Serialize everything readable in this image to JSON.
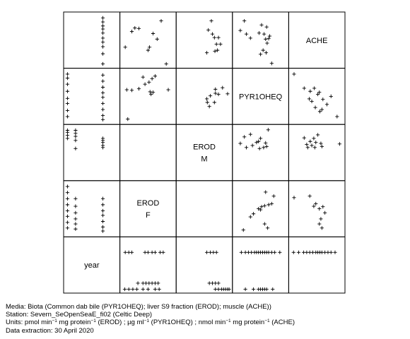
{
  "chart_data": {
    "type": "scatter",
    "title": "",
    "variables": [
      {
        "id": "year",
        "label_lines": [
          "year"
        ]
      },
      {
        "id": "erod_f",
        "label_lines": [
          "EROD",
          "F"
        ]
      },
      {
        "id": "erod_m",
        "label_lines": [
          "EROD",
          "M"
        ]
      },
      {
        "id": "pyr1oheq",
        "label_lines": [
          "PYR1OHEQ"
        ]
      },
      {
        "id": "ache",
        "label_lines": [
          "ACHE"
        ]
      }
    ],
    "panels": [
      {
        "row": 0,
        "col": 1,
        "points": [
          [
            0.05,
            0.64
          ],
          [
            0.18,
            0.33
          ],
          [
            0.24,
            0.26
          ],
          [
            0.32,
            0.27
          ],
          [
            0.5,
            0.7
          ],
          [
            0.53,
            0.64
          ],
          [
            0.6,
            0.37
          ],
          [
            0.76,
            0.12
          ],
          [
            0.68,
            0.48
          ],
          [
            0.86,
            0.97
          ]
        ]
      },
      {
        "row": 0,
        "col": 2,
        "points": [
          [
            0.58,
            0.3
          ],
          [
            0.64,
            0.12
          ],
          [
            0.66,
            0.38
          ],
          [
            0.7,
            0.45
          ],
          [
            0.74,
            0.58
          ],
          [
            0.78,
            0.45
          ],
          [
            0.82,
            0.58
          ],
          [
            0.71,
            0.72
          ],
          [
            0.76,
            0.7
          ],
          [
            0.55,
            0.75
          ]
        ]
      },
      {
        "row": 0,
        "col": 3,
        "points": [
          [
            0.1,
            0.31
          ],
          [
            0.22,
            0.38
          ],
          [
            0.18,
            0.12
          ],
          [
            0.3,
            0.46
          ],
          [
            0.47,
            0.36
          ],
          [
            0.52,
            0.2
          ],
          [
            0.57,
            0.38
          ],
          [
            0.6,
            0.48
          ],
          [
            0.62,
            0.24
          ],
          [
            0.66,
            0.47
          ],
          [
            0.68,
            0.42
          ],
          [
            0.63,
            0.56
          ],
          [
            0.55,
            0.7
          ],
          [
            0.5,
            0.78
          ],
          [
            0.61,
            0.75
          ],
          [
            0.72,
            0.96
          ]
        ]
      },
      {
        "row": 0,
        "col": 0,
        "points": [
          [
            0.72,
            0.06
          ],
          [
            0.72,
            0.14
          ],
          [
            0.72,
            0.22
          ],
          [
            0.72,
            0.28
          ],
          [
            0.72,
            0.36
          ],
          [
            0.72,
            0.46
          ],
          [
            0.72,
            0.54
          ],
          [
            0.72,
            0.63
          ],
          [
            0.72,
            0.77
          ],
          [
            0.72,
            0.97
          ]
        ]
      },
      {
        "row": 1,
        "col": 0,
        "points": [
          [
            0.02,
            0.06
          ],
          [
            0.02,
            0.14
          ],
          [
            0.02,
            0.26
          ],
          [
            0.02,
            0.4
          ],
          [
            0.02,
            0.54
          ],
          [
            0.02,
            0.64
          ],
          [
            0.02,
            0.78
          ],
          [
            0.02,
            0.9
          ],
          [
            0.72,
            0.08
          ],
          [
            0.72,
            0.2
          ],
          [
            0.72,
            0.32
          ],
          [
            0.72,
            0.43
          ],
          [
            0.72,
            0.52
          ],
          [
            0.72,
            0.64
          ],
          [
            0.72,
            0.76
          ],
          [
            0.72,
            0.88
          ],
          [
            0.72,
            0.96
          ]
        ]
      },
      {
        "row": 1,
        "col": 1,
        "points": [
          [
            0.1,
            0.95
          ],
          [
            0.08,
            0.37
          ],
          [
            0.18,
            0.38
          ],
          [
            0.32,
            0.35
          ],
          [
            0.4,
            0.12
          ],
          [
            0.52,
            0.22
          ],
          [
            0.58,
            0.15
          ],
          [
            0.56,
            0.46
          ],
          [
            0.6,
            0.42
          ],
          [
            0.54,
            0.41
          ],
          [
            0.64,
            0.1
          ],
          [
            0.44,
            0.26
          ],
          [
            0.9,
            0.37
          ]
        ]
      },
      {
        "row": 1,
        "col": 2,
        "points": [
          [
            0.55,
            0.55
          ],
          [
            0.62,
            0.49
          ],
          [
            0.7,
            0.62
          ],
          [
            0.72,
            0.44
          ],
          [
            0.78,
            0.46
          ],
          [
            0.72,
            0.36
          ],
          [
            0.6,
            0.7
          ],
          [
            0.56,
            0.62
          ],
          [
            0.96,
            0.45
          ],
          [
            0.86,
            0.33
          ]
        ]
      },
      {
        "row": 1,
        "col": 4,
        "points": [
          [
            0.05,
            0.06
          ],
          [
            0.25,
            0.34
          ],
          [
            0.37,
            0.4
          ],
          [
            0.45,
            0.34
          ],
          [
            0.52,
            0.46
          ],
          [
            0.35,
            0.55
          ],
          [
            0.4,
            0.6
          ],
          [
            0.47,
            0.72
          ],
          [
            0.56,
            0.8
          ],
          [
            0.6,
            0.76
          ],
          [
            0.7,
            0.66
          ],
          [
            0.78,
            0.5
          ],
          [
            0.62,
            0.56
          ],
          [
            0.9,
            0.9
          ],
          [
            0.55,
            0.42
          ]
        ]
      },
      {
        "row": 2,
        "col": 0,
        "points": [
          [
            0.02,
            0.06
          ],
          [
            0.02,
            0.1
          ],
          [
            0.02,
            0.16
          ],
          [
            0.02,
            0.22
          ],
          [
            0.18,
            0.06
          ],
          [
            0.18,
            0.12
          ],
          [
            0.18,
            0.18
          ],
          [
            0.18,
            0.26
          ],
          [
            0.18,
            0.42
          ],
          [
            0.72,
            0.22
          ],
          [
            0.72,
            0.26
          ],
          [
            0.72,
            0.3
          ],
          [
            0.72,
            0.36
          ],
          [
            0.72,
            0.4
          ]
        ]
      },
      {
        "row": 2,
        "col": 3,
        "points": [
          [
            0.18,
            0.19
          ],
          [
            0.3,
            0.14
          ],
          [
            0.1,
            0.32
          ],
          [
            0.22,
            0.4
          ],
          [
            0.34,
            0.36
          ],
          [
            0.46,
            0.28
          ],
          [
            0.5,
            0.22
          ],
          [
            0.42,
            0.3
          ],
          [
            0.6,
            0.31
          ],
          [
            0.65,
            0.05
          ],
          [
            0.62,
            0.38
          ],
          [
            0.56,
            0.4
          ],
          [
            0.48,
            0.42
          ]
        ]
      },
      {
        "row": 2,
        "col": 4,
        "points": [
          [
            0.25,
            0.21
          ],
          [
            0.3,
            0.34
          ],
          [
            0.37,
            0.28
          ],
          [
            0.44,
            0.22
          ],
          [
            0.48,
            0.3
          ],
          [
            0.52,
            0.15
          ],
          [
            0.58,
            0.32
          ],
          [
            0.6,
            0.38
          ],
          [
            0.46,
            0.4
          ],
          [
            0.4,
            0.36
          ],
          [
            0.95,
            0.33
          ],
          [
            0.32,
            0.4
          ]
        ]
      },
      {
        "row": 3,
        "col": 0,
        "points": [
          [
            0.02,
            0.06
          ],
          [
            0.02,
            0.18
          ],
          [
            0.02,
            0.3
          ],
          [
            0.02,
            0.42
          ],
          [
            0.02,
            0.54
          ],
          [
            0.02,
            0.65
          ],
          [
            0.02,
            0.77
          ],
          [
            0.02,
            0.88
          ],
          [
            0.18,
            0.3
          ],
          [
            0.18,
            0.45
          ],
          [
            0.18,
            0.58
          ],
          [
            0.18,
            0.7
          ],
          [
            0.18,
            0.8
          ],
          [
            0.18,
            0.9
          ],
          [
            0.72,
            0.3
          ],
          [
            0.72,
            0.42
          ],
          [
            0.72,
            0.54
          ],
          [
            0.72,
            0.63
          ],
          [
            0.72,
            0.75
          ],
          [
            0.72,
            0.86
          ],
          [
            0.72,
            0.94
          ]
        ]
      },
      {
        "row": 3,
        "col": 3,
        "points": [
          [
            0.6,
            0.17
          ],
          [
            0.76,
            0.25
          ],
          [
            0.58,
            0.44
          ],
          [
            0.66,
            0.42
          ],
          [
            0.52,
            0.46
          ],
          [
            0.46,
            0.5
          ],
          [
            0.36,
            0.6
          ],
          [
            0.16,
            0.92
          ],
          [
            0.64,
            0.88
          ],
          [
            0.58,
            0.8
          ],
          [
            0.5,
            0.52
          ],
          [
            0.72,
            0.4
          ],
          [
            0.3,
            0.66
          ]
        ]
      },
      {
        "row": 3,
        "col": 4,
        "points": [
          [
            0.05,
            0.28
          ],
          [
            0.36,
            0.25
          ],
          [
            0.44,
            0.45
          ],
          [
            0.55,
            0.5
          ],
          [
            0.62,
            0.46
          ],
          [
            0.66,
            0.58
          ],
          [
            0.58,
            0.7
          ],
          [
            0.55,
            0.8
          ],
          [
            0.6,
            0.88
          ],
          [
            0.48,
            0.4
          ]
        ]
      },
      {
        "row": 4,
        "col": 1,
        "points": [
          [
            0.05,
            0.25
          ],
          [
            0.12,
            0.25
          ],
          [
            0.18,
            0.25
          ],
          [
            0.44,
            0.25
          ],
          [
            0.5,
            0.25
          ],
          [
            0.58,
            0.25
          ],
          [
            0.64,
            0.25
          ],
          [
            0.74,
            0.25
          ],
          [
            0.8,
            0.25
          ],
          [
            0.3,
            0.86
          ],
          [
            0.4,
            0.86
          ],
          [
            0.46,
            0.86
          ],
          [
            0.52,
            0.86
          ],
          [
            0.58,
            0.86
          ],
          [
            0.64,
            0.86
          ],
          [
            0.7,
            0.86
          ],
          [
            0.04,
            0.98
          ],
          [
            0.12,
            0.98
          ],
          [
            0.2,
            0.98
          ],
          [
            0.28,
            0.98
          ],
          [
            0.4,
            0.98
          ],
          [
            0.5,
            0.98
          ],
          [
            0.64,
            0.98
          ],
          [
            0.72,
            0.98
          ]
        ]
      },
      {
        "row": 4,
        "col": 2,
        "points": [
          [
            0.55,
            0.25
          ],
          [
            0.62,
            0.25
          ],
          [
            0.68,
            0.25
          ],
          [
            0.74,
            0.25
          ],
          [
            0.6,
            0.86
          ],
          [
            0.66,
            0.86
          ],
          [
            0.72,
            0.86
          ],
          [
            0.78,
            0.86
          ],
          [
            0.72,
            0.98
          ],
          [
            0.78,
            0.98
          ],
          [
            0.84,
            0.98
          ],
          [
            0.88,
            0.98
          ],
          [
            0.92,
            0.98
          ],
          [
            0.96,
            0.98
          ],
          [
            0.99,
            0.98
          ]
        ]
      },
      {
        "row": 4,
        "col": 3,
        "points": [
          [
            0.12,
            0.25
          ],
          [
            0.2,
            0.25
          ],
          [
            0.26,
            0.25
          ],
          [
            0.32,
            0.25
          ],
          [
            0.38,
            0.25
          ],
          [
            0.42,
            0.25
          ],
          [
            0.46,
            0.25
          ],
          [
            0.5,
            0.25
          ],
          [
            0.54,
            0.25
          ],
          [
            0.58,
            0.25
          ],
          [
            0.62,
            0.25
          ],
          [
            0.66,
            0.25
          ],
          [
            0.72,
            0.25
          ],
          [
            0.78,
            0.25
          ],
          [
            0.88,
            0.25
          ],
          [
            0.2,
            0.98
          ],
          [
            0.36,
            0.98
          ],
          [
            0.46,
            0.98
          ],
          [
            0.5,
            0.98
          ],
          [
            0.54,
            0.98
          ],
          [
            0.58,
            0.98
          ],
          [
            0.62,
            0.98
          ],
          [
            0.74,
            0.98
          ]
        ]
      },
      {
        "row": 4,
        "col": 4,
        "points": [
          [
            0.04,
            0.25
          ],
          [
            0.14,
            0.25
          ],
          [
            0.24,
            0.25
          ],
          [
            0.3,
            0.25
          ],
          [
            0.36,
            0.25
          ],
          [
            0.42,
            0.25
          ],
          [
            0.48,
            0.25
          ],
          [
            0.52,
            0.25
          ],
          [
            0.56,
            0.25
          ],
          [
            0.6,
            0.25
          ],
          [
            0.66,
            0.25
          ],
          [
            0.72,
            0.25
          ],
          [
            0.78,
            0.25
          ],
          [
            0.86,
            0.25
          ]
        ]
      }
    ]
  },
  "captions": {
    "media": "Media: Biota (Common dab bile (PYR1OHEQ); liver S9 fraction (EROD); muscle (ACHE))",
    "station": "Station: Severn_SeOpenSeaE_fi02 (Celtic Deep)",
    "units_prefix": "Units:  pmol min",
    "units_sup1": "−1",
    "units_mid1": " mg protein",
    "units_sup2": "−1",
    "units_mid2": " (EROD) ;  µg ml",
    "units_sup3": "−1",
    "units_mid3": " (PYR1OHEQ) ;  nmol min",
    "units_sup4": "−1",
    "units_mid4": " mg protein",
    "units_sup5": "−1",
    "units_suffix": " (ACHE)",
    "extraction": "Data extraction: 30 April 2020"
  }
}
